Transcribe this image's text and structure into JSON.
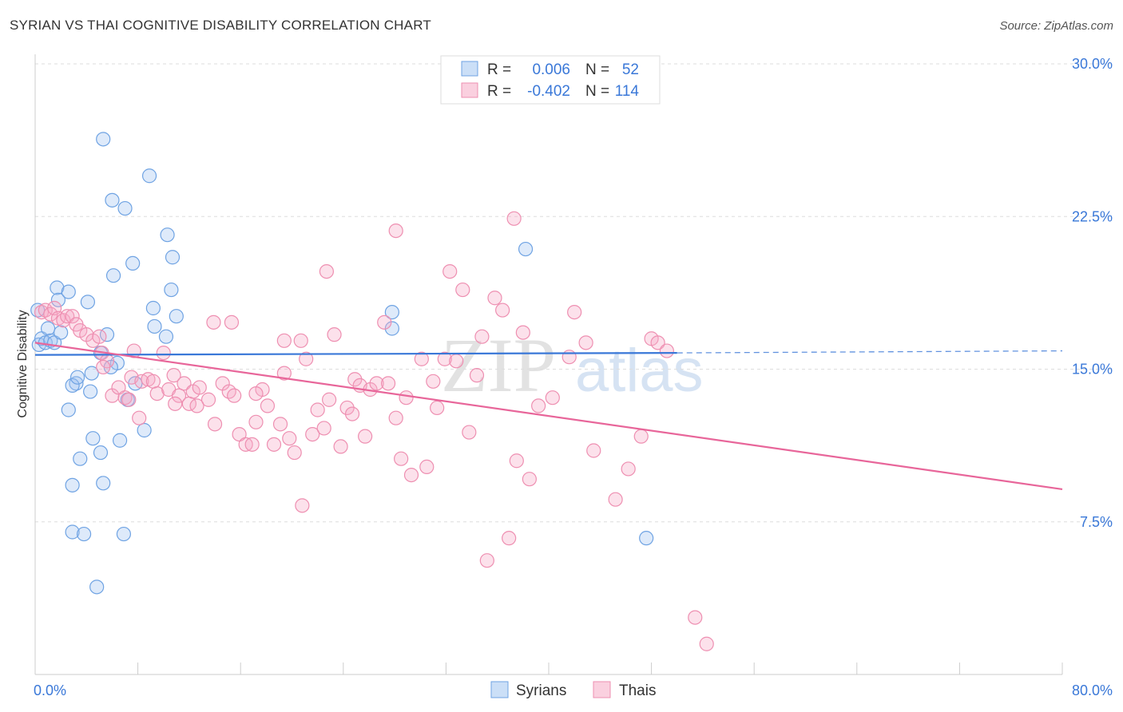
{
  "chart_data": {
    "type": "scatter",
    "title": "SYRIAN VS THAI COGNITIVE DISABILITY CORRELATION CHART",
    "source": "Source: ZipAtlas.com",
    "xlabel": "",
    "ylabel": "Cognitive Disability",
    "xlim": [
      0,
      80
    ],
    "ylim": [
      0,
      30
    ],
    "x_tick_labels": [
      {
        "value": 0,
        "label": "0.0%"
      },
      {
        "value": 80,
        "label": "80.0%"
      }
    ],
    "y_tick_labels": [
      {
        "value": 7.5,
        "label": "7.5%"
      },
      {
        "value": 15,
        "label": "15.0%"
      },
      {
        "value": 22.5,
        "label": "22.5%"
      },
      {
        "value": 30,
        "label": "30.0%"
      }
    ],
    "watermark": {
      "zip": "ZIP",
      "atlas": "atlas"
    },
    "legend_top": [
      {
        "r_label": "R =",
        "r_value": "0.006",
        "n_label": "N =",
        "n_value": "52",
        "color": "#6fa3e3"
      },
      {
        "r_label": "R =",
        "r_value": "-0.402",
        "n_label": "N =",
        "n_value": "114",
        "color": "#ee8fb1"
      }
    ],
    "legend_bottom": [
      "Syrians",
      "Thais"
    ],
    "series": [
      {
        "name": "Syrians",
        "stroke": "#6fa3e3",
        "fill": "rgba(160,196,240,0.35)",
        "trend": {
          "color": "#3a78d8",
          "x_start": 0,
          "y_start": 15.7,
          "x_end": 50,
          "y_end": 15.8,
          "x_dash_end": 80,
          "y_dash_end": 15.9
        },
        "points": [
          [
            0.3,
            16.2
          ],
          [
            0.5,
            16.5
          ],
          [
            0.8,
            16.3
          ],
          [
            1.0,
            17.0
          ],
          [
            1.2,
            16.4
          ],
          [
            1.5,
            16.3
          ],
          [
            1.7,
            19.0
          ],
          [
            1.8,
            18.4
          ],
          [
            2.0,
            16.8
          ],
          [
            2.6,
            18.8
          ],
          [
            4.1,
            18.3
          ],
          [
            4.4,
            14.8
          ],
          [
            3.2,
            14.3
          ],
          [
            2.9,
            14.2
          ],
          [
            3.3,
            14.6
          ],
          [
            2.6,
            13.0
          ],
          [
            3.5,
            10.6
          ],
          [
            2.9,
            9.3
          ],
          [
            2.9,
            7.0
          ],
          [
            3.8,
            6.9
          ],
          [
            4.8,
            4.3
          ],
          [
            5.1,
            10.9
          ],
          [
            4.5,
            11.6
          ],
          [
            5.3,
            9.4
          ],
          [
            6.6,
            11.5
          ],
          [
            6.4,
            15.3
          ],
          [
            5.1,
            15.8
          ],
          [
            5.9,
            15.1
          ],
          [
            5.6,
            16.7
          ],
          [
            4.3,
            13.9
          ],
          [
            7.2,
            13.5
          ],
          [
            7.8,
            14.3
          ],
          [
            8.5,
            12.0
          ],
          [
            6.9,
            6.9
          ],
          [
            6.1,
            19.6
          ],
          [
            7.6,
            20.2
          ],
          [
            7.0,
            22.9
          ],
          [
            6.0,
            23.3
          ],
          [
            5.3,
            26.3
          ],
          [
            8.9,
            24.5
          ],
          [
            10.3,
            21.6
          ],
          [
            10.7,
            20.5
          ],
          [
            10.6,
            18.9
          ],
          [
            9.2,
            18.0
          ],
          [
            11.0,
            17.6
          ],
          [
            9.3,
            17.1
          ],
          [
            10.2,
            16.6
          ],
          [
            27.8,
            17.8
          ],
          [
            27.8,
            17.0
          ],
          [
            38.2,
            20.9
          ],
          [
            47.6,
            6.7
          ],
          [
            0.2,
            17.9
          ]
        ]
      },
      {
        "name": "Thais",
        "stroke": "#ee8fb1",
        "fill": "rgba(245,170,197,0.35)",
        "trend": {
          "color": "#e8669a",
          "x_start": 0,
          "y_start": 16.3,
          "x_end": 80,
          "y_end": 9.1
        },
        "points": [
          [
            0.5,
            17.8
          ],
          [
            0.8,
            17.9
          ],
          [
            1.2,
            17.7
          ],
          [
            1.5,
            18.0
          ],
          [
            1.8,
            17.5
          ],
          [
            2.2,
            17.4
          ],
          [
            2.5,
            17.6
          ],
          [
            2.9,
            17.6
          ],
          [
            3.2,
            17.2
          ],
          [
            3.5,
            16.9
          ],
          [
            4.0,
            16.7
          ],
          [
            4.5,
            16.4
          ],
          [
            5.0,
            16.6
          ],
          [
            5.2,
            15.8
          ],
          [
            5.6,
            15.4
          ],
          [
            5.3,
            15.1
          ],
          [
            6.0,
            13.7
          ],
          [
            6.5,
            14.1
          ],
          [
            7.0,
            13.6
          ],
          [
            7.5,
            14.6
          ],
          [
            7.7,
            15.9
          ],
          [
            8.3,
            14.4
          ],
          [
            8.8,
            14.5
          ],
          [
            9.2,
            14.4
          ],
          [
            9.5,
            13.8
          ],
          [
            10.0,
            15.8
          ],
          [
            10.4,
            14.0
          ],
          [
            10.8,
            14.7
          ],
          [
            11.2,
            13.7
          ],
          [
            11.6,
            14.3
          ],
          [
            12.0,
            13.3
          ],
          [
            12.3,
            13.9
          ],
          [
            12.8,
            14.1
          ],
          [
            13.5,
            13.5
          ],
          [
            14.0,
            12.3
          ],
          [
            14.6,
            14.3
          ],
          [
            15.1,
            13.9
          ],
          [
            15.5,
            13.7
          ],
          [
            15.9,
            11.8
          ],
          [
            16.4,
            11.3
          ],
          [
            16.9,
            11.3
          ],
          [
            17.2,
            12.4
          ],
          [
            17.7,
            14.0
          ],
          [
            18.1,
            13.2
          ],
          [
            18.6,
            11.3
          ],
          [
            19.1,
            12.3
          ],
          [
            19.4,
            16.4
          ],
          [
            19.8,
            11.6
          ],
          [
            20.2,
            10.9
          ],
          [
            20.7,
            16.4
          ],
          [
            21.1,
            15.5
          ],
          [
            21.6,
            11.8
          ],
          [
            22.0,
            13.0
          ],
          [
            22.5,
            12.1
          ],
          [
            22.9,
            13.5
          ],
          [
            23.3,
            16.7
          ],
          [
            23.8,
            11.2
          ],
          [
            24.3,
            13.1
          ],
          [
            24.9,
            14.5
          ],
          [
            25.3,
            14.2
          ],
          [
            25.7,
            11.7
          ],
          [
            26.1,
            14.0
          ],
          [
            26.6,
            14.3
          ],
          [
            27.2,
            17.3
          ],
          [
            27.5,
            14.3
          ],
          [
            28.1,
            12.6
          ],
          [
            28.5,
            10.6
          ],
          [
            28.9,
            13.6
          ],
          [
            29.3,
            9.8
          ],
          [
            30.1,
            15.5
          ],
          [
            30.5,
            10.2
          ],
          [
            31.0,
            14.4
          ],
          [
            31.3,
            13.1
          ],
          [
            31.9,
            15.5
          ],
          [
            32.3,
            19.8
          ],
          [
            32.8,
            15.4
          ],
          [
            33.3,
            18.9
          ],
          [
            33.8,
            11.9
          ],
          [
            34.4,
            14.7
          ],
          [
            34.8,
            16.6
          ],
          [
            35.2,
            5.6
          ],
          [
            35.8,
            18.5
          ],
          [
            36.4,
            17.9
          ],
          [
            36.9,
            6.7
          ],
          [
            37.5,
            10.5
          ],
          [
            38.0,
            16.8
          ],
          [
            38.5,
            9.6
          ],
          [
            39.2,
            13.2
          ],
          [
            40.3,
            13.6
          ],
          [
            41.6,
            15.6
          ],
          [
            42.0,
            17.8
          ],
          [
            42.9,
            16.3
          ],
          [
            43.5,
            11.0
          ],
          [
            45.2,
            8.6
          ],
          [
            46.2,
            10.1
          ],
          [
            47.2,
            11.7
          ],
          [
            48.0,
            16.5
          ],
          [
            48.5,
            16.3
          ],
          [
            49.2,
            15.9
          ],
          [
            51.4,
            2.8
          ],
          [
            52.3,
            1.5
          ],
          [
            37.3,
            22.4
          ],
          [
            28.1,
            21.8
          ],
          [
            22.7,
            19.8
          ],
          [
            13.9,
            17.3
          ],
          [
            15.3,
            17.3
          ],
          [
            10.9,
            13.3
          ],
          [
            8.1,
            12.6
          ],
          [
            7.3,
            13.5
          ],
          [
            17.2,
            13.8
          ],
          [
            12.6,
            13.2
          ],
          [
            19.4,
            14.8
          ],
          [
            24.7,
            12.8
          ],
          [
            20.8,
            8.3
          ]
        ]
      }
    ]
  }
}
